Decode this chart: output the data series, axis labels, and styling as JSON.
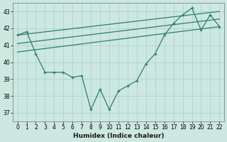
{
  "xlabel": "Humidex (Indice chaleur)",
  "background_color": "#cce8e0",
  "grid_color": "#aacfc8",
  "line_color": "#2e7d6e",
  "xlim": [
    -0.5,
    22.5
  ],
  "ylim": [
    36.5,
    43.5
  ],
  "xticks": [
    0,
    1,
    2,
    3,
    4,
    5,
    6,
    7,
    8,
    9,
    10,
    11,
    12,
    13,
    14,
    15,
    16,
    17,
    18,
    19,
    20,
    21,
    22
  ],
  "yticks": [
    37,
    38,
    39,
    40,
    41,
    42,
    43
  ],
  "main_series": {
    "x": [
      0,
      1,
      2,
      3,
      4,
      5,
      6,
      7,
      8,
      9,
      10,
      11,
      12,
      13,
      14,
      15,
      16,
      17,
      18,
      19,
      20,
      21,
      22
    ],
    "y": [
      41.6,
      41.8,
      40.5,
      39.4,
      39.4,
      39.4,
      39.1,
      39.2,
      37.2,
      38.4,
      37.2,
      38.3,
      38.6,
      38.9,
      39.9,
      40.5,
      41.6,
      42.3,
      42.8,
      43.2,
      41.9,
      42.8,
      42.1
    ]
  },
  "trend_lines": [
    {
      "x": [
        0,
        22
      ],
      "y": [
        41.6,
        43.0
      ]
    },
    {
      "x": [
        0,
        22
      ],
      "y": [
        41.1,
        42.55
      ]
    },
    {
      "x": [
        0,
        22
      ],
      "y": [
        40.6,
        42.1
      ]
    }
  ]
}
